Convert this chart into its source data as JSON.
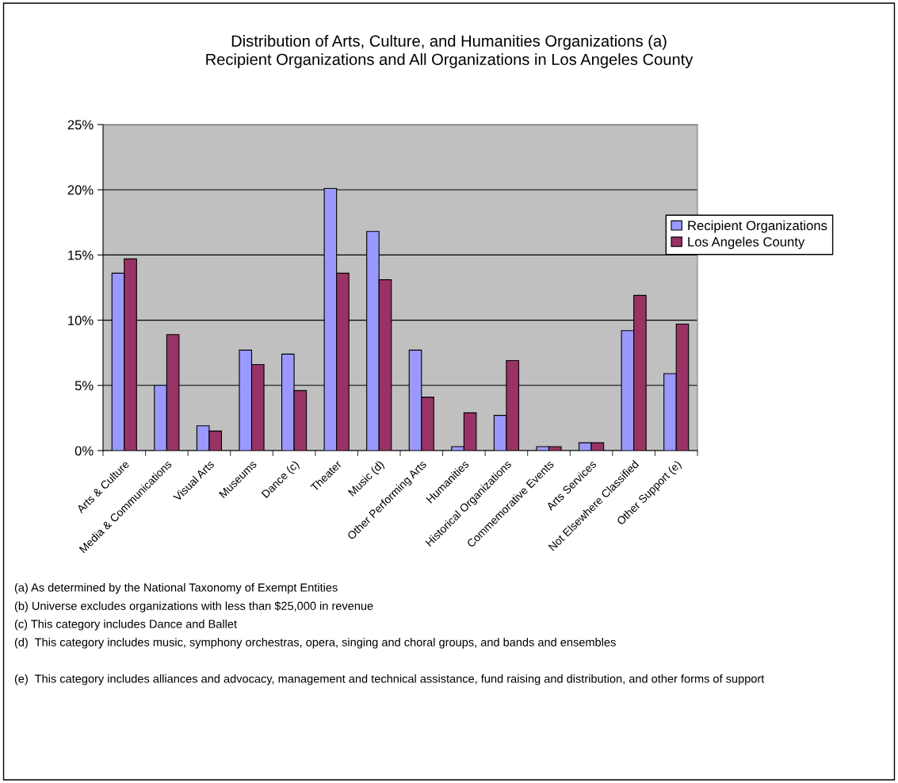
{
  "chart_data": {
    "type": "bar",
    "title": "Distribution of Arts, Culture, and Humanities Organizations (a)\nRecipient Organizations and All Organizations in Los Angeles County",
    "categories": [
      "Arts & Culture",
      "Media & Communications",
      "Visual Arts",
      "Museums",
      "Dance (c)",
      "Theater",
      "Music (d)",
      "Other Performing Arts",
      "Humanities",
      "Historical Organizations",
      "Commemorative Events",
      "Arts Services",
      "Not Elsewhere Classified",
      "Other Support (e)"
    ],
    "series": [
      {
        "name": "Recipient Organizations",
        "color": "#9999ff",
        "values": [
          13.6,
          5.0,
          1.9,
          7.7,
          7.4,
          20.1,
          16.8,
          7.7,
          0.3,
          2.7,
          0.3,
          0.6,
          9.2,
          5.9
        ]
      },
      {
        "name": "Los Angeles County",
        "color": "#993366",
        "values": [
          14.7,
          8.9,
          1.5,
          6.6,
          4.6,
          13.6,
          13.1,
          4.1,
          2.9,
          6.9,
          0.3,
          0.6,
          11.9,
          9.7
        ]
      }
    ],
    "ylim": [
      0,
      25
    ],
    "yticks": [
      {
        "value": 0,
        "label": "0%"
      },
      {
        "value": 5,
        "label": "5%"
      },
      {
        "value": 10,
        "label": "10%"
      },
      {
        "value": 15,
        "label": "15%"
      },
      {
        "value": 20,
        "label": "20%"
      },
      {
        "value": 25,
        "label": "25%"
      }
    ],
    "grid": "y",
    "legend": "right",
    "annotations": [
      "(a) As determined by the National Taxonomy of Exempt Entities",
      "(b) Universe excludes organizations with less than $25,000 in revenue",
      "(c) This category includes Dance and Ballet",
      "(d)  This category includes music, symphony orchestras, opera, singing and choral groups, and bands and ensembles",
      "(e)  This category includes alliances and advocacy, management and technical assistance, fund raising and distribution, and other forms of support"
    ]
  }
}
